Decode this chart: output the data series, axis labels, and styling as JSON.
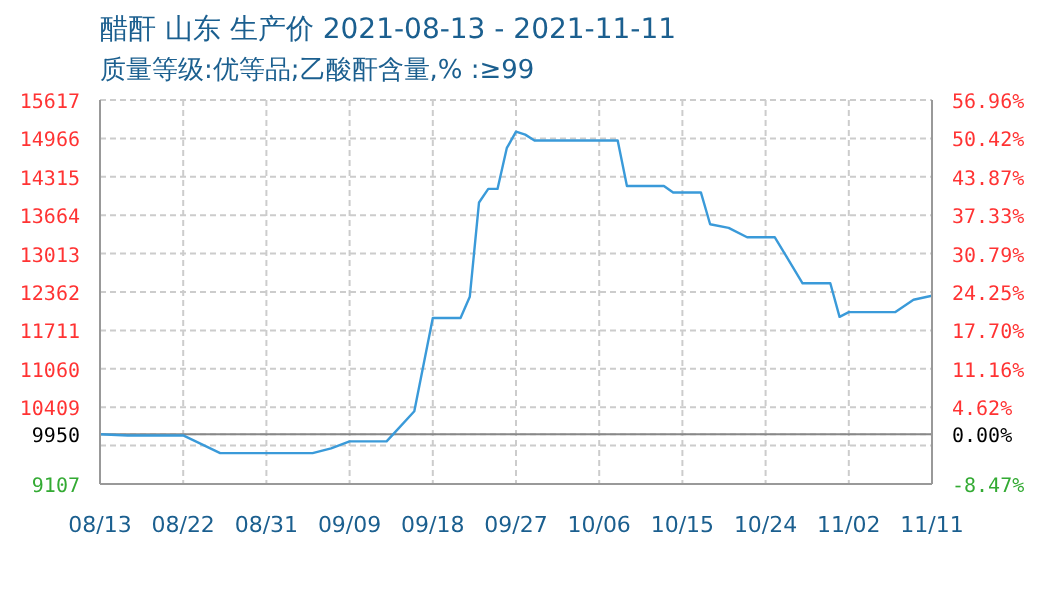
{
  "chart_data": {
    "type": "line",
    "title": "醋酐 山东 生产价 2021-08-13 - 2021-11-11",
    "subtitle": "质量等级:优等品;乙酸酐含量,% :≥99",
    "x": [
      "2021-08-13",
      "2021-08-16",
      "2021-08-22",
      "2021-08-26",
      "2021-09-05",
      "2021-09-07",
      "2021-09-09",
      "2021-09-13",
      "2021-09-14",
      "2021-09-16",
      "2021-09-18",
      "2021-09-21",
      "2021-09-22",
      "2021-09-23",
      "2021-09-24",
      "2021-09-25",
      "2021-09-26",
      "2021-09-27",
      "2021-09-28",
      "2021-09-29",
      "2021-10-08",
      "2021-10-09",
      "2021-10-13",
      "2021-10-14",
      "2021-10-17",
      "2021-10-18",
      "2021-10-20",
      "2021-10-22",
      "2021-10-25",
      "2021-10-28",
      "2021-10-31",
      "2021-11-01",
      "2021-11-02",
      "2021-11-07",
      "2021-11-09",
      "2021-11-11"
    ],
    "series": [
      {
        "color": "#3a9ad9",
        "values": [
          9950,
          9930,
          9930,
          9630,
          9630,
          9710,
          9830,
          9830,
          10000,
          10340,
          11920,
          11920,
          12280,
          13880,
          14110,
          14110,
          14800,
          15080,
          15030,
          14930,
          14930,
          14160,
          14160,
          14050,
          14050,
          13510,
          13450,
          13290,
          13290,
          12510,
          12510,
          11940,
          12020,
          12020,
          12230,
          12300
        ]
      }
    ],
    "xlim": [
      "2021-08-13",
      "2021-11-11"
    ],
    "xticks": [
      {
        "value": "2021-08-13",
        "label": "08/13"
      },
      {
        "value": "2021-08-22",
        "label": "08/22"
      },
      {
        "value": "2021-08-31",
        "label": "08/31"
      },
      {
        "value": "2021-09-09",
        "label": "09/09"
      },
      {
        "value": "2021-09-18",
        "label": "09/18"
      },
      {
        "value": "2021-09-27",
        "label": "09/27"
      },
      {
        "value": "2021-10-06",
        "label": "10/06"
      },
      {
        "value": "2021-10-15",
        "label": "10/15"
      },
      {
        "value": "2021-10-24",
        "label": "10/24"
      },
      {
        "value": "2021-11-02",
        "label": "11/02"
      },
      {
        "value": "2021-11-11",
        "label": "11/11"
      }
    ],
    "ylim": [
      9107,
      15617
    ],
    "yticks": [
      9107,
      {
        "value": 9758,
        "label": null
      },
      9950,
      10409,
      11060,
      11711,
      12362,
      13013,
      13664,
      14315,
      14966,
      15617
    ],
    "y2lim": [
      -8.47,
      56.96
    ],
    "y2ticks": [
      {
        "value": -8.47,
        "label": "-8.47%"
      },
      {
        "value": 0,
        "label": "0.00%"
      },
      {
        "value": 4.62,
        "label": "4.62%"
      },
      {
        "value": 11.16,
        "label": "11.16%"
      },
      {
        "value": 17.7,
        "label": "17.70%"
      },
      {
        "value": 24.25,
        "label": "24.25%"
      },
      {
        "value": 30.79,
        "label": "30.79%"
      },
      {
        "value": 37.33,
        "label": "37.33%"
      },
      {
        "value": 43.87,
        "label": "43.87%"
      },
      {
        "value": 50.42,
        "label": "50.42%"
      },
      {
        "value": 56.96,
        "label": "56.96%"
      }
    ],
    "ref_lines": [
      {
        "axis": "y",
        "value": 9950,
        "color": "#888888"
      }
    ],
    "grid": true,
    "marker": "none",
    "line_style": "solid"
  }
}
